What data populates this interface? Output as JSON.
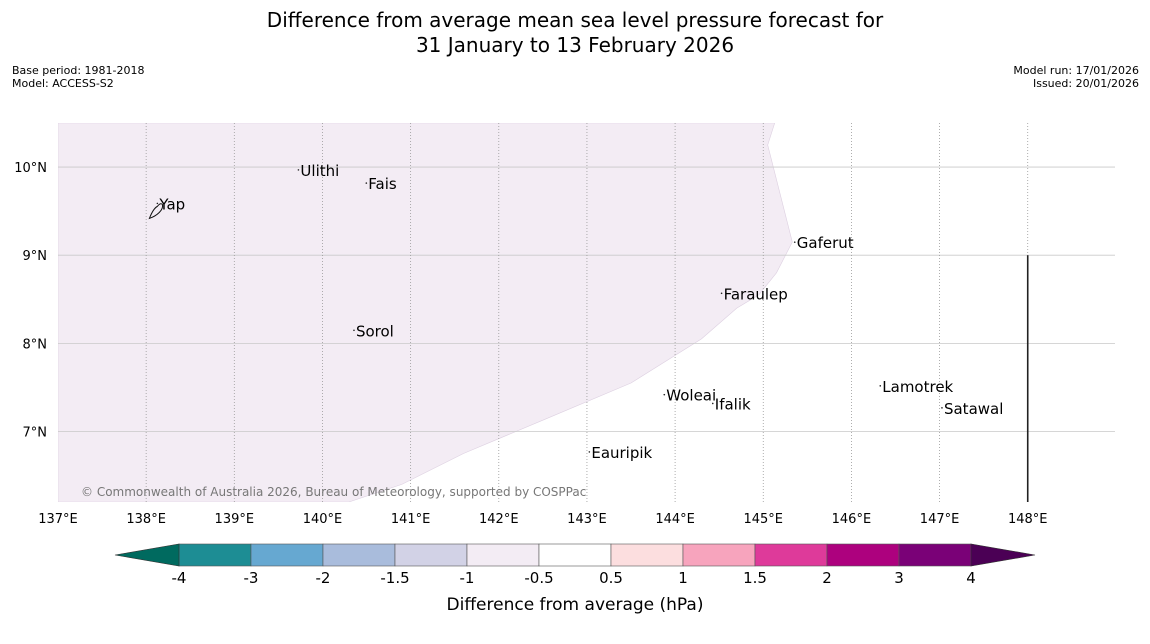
{
  "header": {
    "title_line1": "Difference from average mean sea level pressure forecast for",
    "title_line2": "31 January to 13 February 2026",
    "base_period": "Base period: 1981-2018",
    "model": "Model: ACCESS-S2",
    "model_run": "Model run: 17/01/2026",
    "issued": "Issued: 20/01/2026"
  },
  "map": {
    "lat_range": [
      6.2,
      10.5
    ],
    "lon_range": [
      137.0,
      148.99
    ],
    "lon_ticks": [
      {
        "value": 137,
        "label": "137°E"
      },
      {
        "value": 138,
        "label": "138°E"
      },
      {
        "value": 139,
        "label": "139°E"
      },
      {
        "value": 140,
        "label": "140°E"
      },
      {
        "value": 141,
        "label": "141°E"
      },
      {
        "value": 142,
        "label": "142°E"
      },
      {
        "value": 143,
        "label": "143°E"
      },
      {
        "value": 144,
        "label": "144°E"
      },
      {
        "value": 145,
        "label": "145°E"
      },
      {
        "value": 146,
        "label": "146°E"
      },
      {
        "value": 147,
        "label": "147°E"
      },
      {
        "value": 148,
        "label": "148°E"
      }
    ],
    "lat_ticks": [
      {
        "value": 10,
        "label": "10°N"
      },
      {
        "value": 9,
        "label": "9°N"
      },
      {
        "value": 8,
        "label": "8°N"
      },
      {
        "value": 7,
        "label": "7°N"
      }
    ],
    "anomaly_region": {
      "category": "-1 to -0.5 hPa",
      "color": "#f3ecf4",
      "boundary": [
        [
          137.0,
          10.5
        ],
        [
          145.13,
          10.5
        ],
        [
          145.05,
          10.25
        ],
        [
          145.33,
          9.15
        ],
        [
          145.15,
          8.8
        ],
        [
          144.95,
          8.55
        ],
        [
          144.7,
          8.4
        ],
        [
          144.3,
          8.05
        ],
        [
          143.5,
          7.55
        ],
        [
          142.55,
          7.15
        ],
        [
          141.6,
          6.75
        ],
        [
          140.9,
          6.4
        ],
        [
          140.3,
          6.2
        ],
        [
          137.0,
          6.2
        ]
      ]
    },
    "boundary_line": {
      "lon": 148.0,
      "lat_from": 6.2,
      "lat_to": 9.0
    },
    "places": [
      {
        "name": "Yap",
        "lon": 138.15,
        "lat": 9.52
      },
      {
        "name": "Ulithi",
        "lon": 139.75,
        "lat": 9.9
      },
      {
        "name": "Fais",
        "lon": 140.52,
        "lat": 9.75
      },
      {
        "name": "Gaferut",
        "lon": 145.38,
        "lat": 9.08
      },
      {
        "name": "Faraulep",
        "lon": 144.55,
        "lat": 8.5
      },
      {
        "name": "Sorol",
        "lon": 140.38,
        "lat": 8.08
      },
      {
        "name": "Woleai",
        "lon": 143.9,
        "lat": 7.35
      },
      {
        "name": "Ifalik",
        "lon": 144.45,
        "lat": 7.25
      },
      {
        "name": "Lamotrek",
        "lon": 146.35,
        "lat": 7.45
      },
      {
        "name": "Satawal",
        "lon": 147.05,
        "lat": 7.2
      },
      {
        "name": "Eauripik",
        "lon": 143.05,
        "lat": 6.7
      }
    ],
    "copyright": "© Commonwealth of Australia 2026, Bureau of Meteorology, supported by COSPPac"
  },
  "colorbar": {
    "label": "Difference from average (hPa)",
    "colors": [
      "#1d8d94",
      "#66a8d1",
      "#a9bcdc",
      "#d2d2e6",
      "#f3ecf4",
      "#ffffff",
      "#fcdedf",
      "#f7a4bd",
      "#de3a9a",
      "#ad017e",
      "#7a0177"
    ],
    "under_color": "#006a5f",
    "over_color": "#4b0055",
    "tick_labels": [
      "-4",
      "-3",
      "-2",
      "-1.5",
      "-1",
      "-0.5",
      "0.5",
      "1",
      "1.5",
      "2",
      "3",
      "4"
    ]
  }
}
